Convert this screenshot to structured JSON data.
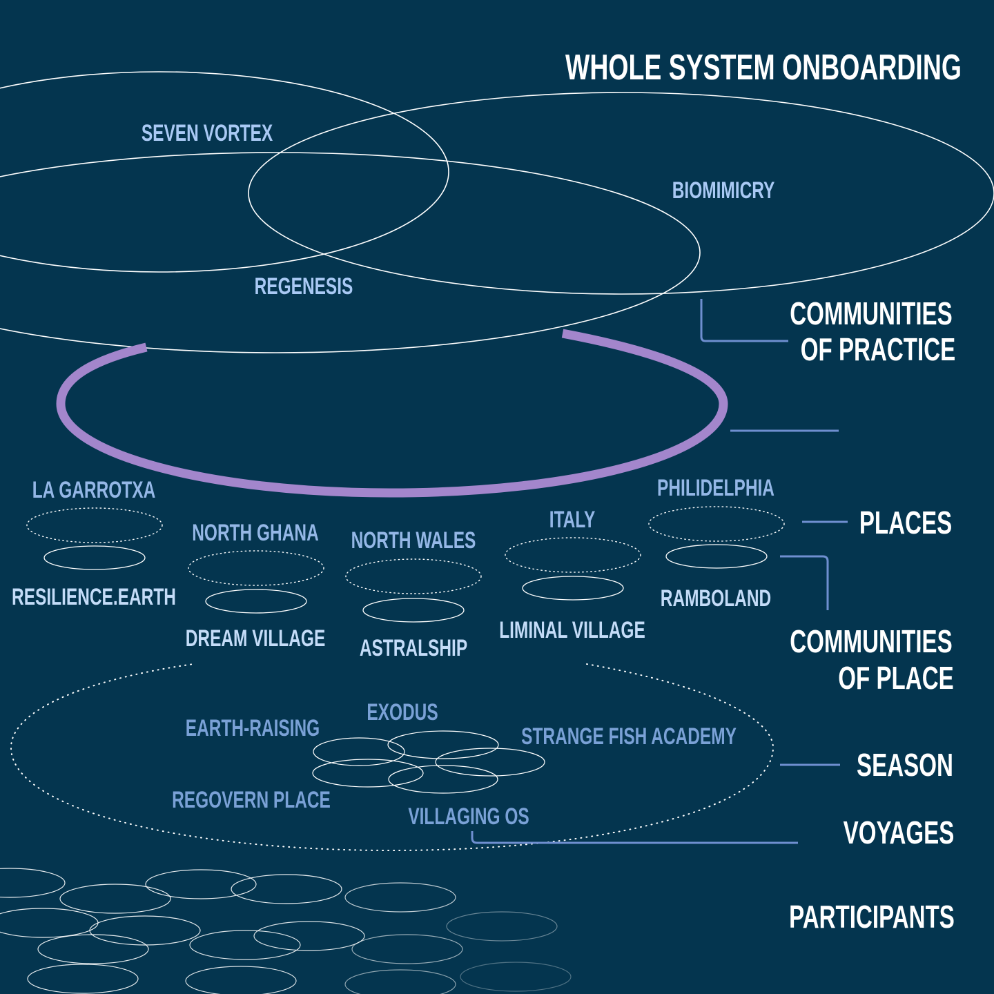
{
  "title": "WHOLE SYSTEM ONBOARDING",
  "levels": {
    "communities_of_practice": [
      "COMMUNITIES",
      "OF PRACTICE"
    ],
    "places": "PLACES",
    "communities_of_place": [
      "COMMUNITIES",
      "OF PLACE"
    ],
    "season": "SEASON",
    "voyages": "VOYAGES",
    "participants": "PARTICIPANTS"
  },
  "communities_of_practice": [
    "SEVEN VORTEX",
    "BIOMIMICRY",
    "REGENESIS"
  ],
  "places": [
    "LA GARROTXA",
    "NORTH GHANA",
    "NORTH WALES",
    "ITALY",
    "PHILIDELPHIA"
  ],
  "communities_of_place": [
    "RESILIENCE.EARTH",
    "DREAM VILLAGE",
    "ASTRALSHIP",
    "LIMINAL VILLAGE",
    "RAMBOLAND"
  ],
  "voyages": [
    "EARTH-RAISING",
    "EXODUS",
    "STRANGE FISH ACADEMY",
    "REGOVERN PLACE",
    "VILLAGING OS"
  ],
  "colors": {
    "background": "#04354f",
    "ring": "#a386cc",
    "connector": "#6f8fd0",
    "outline": "#ffffff"
  }
}
